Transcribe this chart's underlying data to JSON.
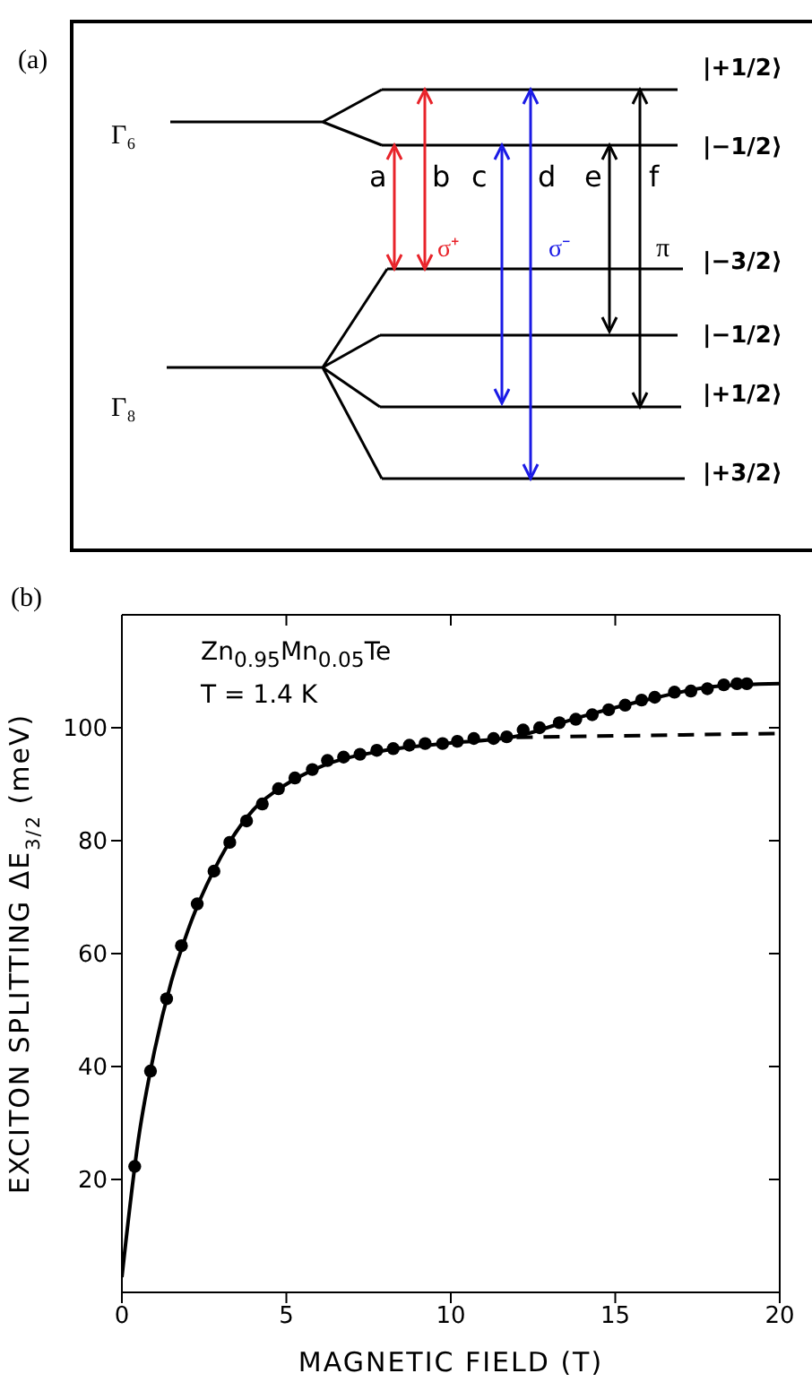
{
  "chart_data": [
    {
      "type": "other",
      "title": "(a)",
      "annotations": [
        "Γ₆",
        "Γ₈",
        "a",
        "b",
        "c",
        "d",
        "e",
        "f",
        "σ⁺",
        "σ⁻",
        "π",
        "|+1/2⟩",
        "|−1/2⟩",
        "|−3/2⟩",
        "|−1/2⟩",
        "|+1/2⟩",
        "|+3/2⟩"
      ]
    },
    {
      "type": "scatter",
      "title": "(b)",
      "xlabel": "MAGNETIC FIELD (T)",
      "ylabel": "EXCITON SPLITTING ΔE$_{3/2}$ (meV)",
      "xlim": [
        0,
        20
      ],
      "xticks": [
        0,
        5,
        10,
        15,
        20
      ],
      "ylim": [
        0,
        120
      ],
      "yticks": [
        20,
        40,
        60,
        80,
        100
      ],
      "annotations": [
        "Zn$_{0.95}$Mn$_{0.05}$Te",
        "T = 1.4 K"
      ],
      "series": [
        {
          "type": "scatter",
          "color": "#000000",
          "marker": "circle",
          "x": [
            0.39,
            0.87,
            1.36,
            1.81,
            2.29,
            2.8,
            3.28,
            3.79,
            4.27,
            4.76,
            5.26,
            5.79,
            6.25,
            6.74,
            7.24,
            7.75,
            8.25,
            8.74,
            9.22,
            9.75,
            10.2,
            10.7,
            11.3,
            11.7,
            12.2,
            12.7,
            13.3,
            13.8,
            14.3,
            14.8,
            15.3,
            15.8,
            16.2,
            16.8,
            17.3,
            17.8,
            18.3,
            18.7,
            19
          ],
          "values": [
            22.3,
            39.2,
            52,
            61.4,
            68.8,
            74.6,
            79.7,
            83.5,
            86.5,
            89.2,
            91.1,
            92.6,
            94.2,
            94.8,
            95.3,
            96,
            96.3,
            96.9,
            97.2,
            97.2,
            97.6,
            98.1,
            98.1,
            98.4,
            99.6,
            100,
            100.9,
            101.5,
            102.3,
            103.2,
            104,
            104.9,
            105.4,
            106.3,
            106.5,
            106.9,
            107.6,
            107.8,
            107.8
          ]
        },
        {
          "type": "line",
          "color": "#000000",
          "line_style": "solid",
          "marker": "none",
          "x": [
            0,
            0.5,
            1,
            1.5,
            2,
            3,
            4,
            5,
            6,
            8,
            10,
            12,
            14,
            16,
            18,
            20
          ],
          "values": [
            2.7,
            27,
            43,
            55,
            64,
            77,
            85.5,
            90,
            93,
            96,
            97.3,
            98.5,
            102,
            105,
            107.3,
            107.8
          ]
        },
        {
          "type": "line",
          "color": "#000000",
          "line_style": "dashed",
          "marker": "none",
          "x": [
            12,
            20
          ],
          "values": [
            98.3,
            99
          ]
        }
      ]
    }
  ]
}
